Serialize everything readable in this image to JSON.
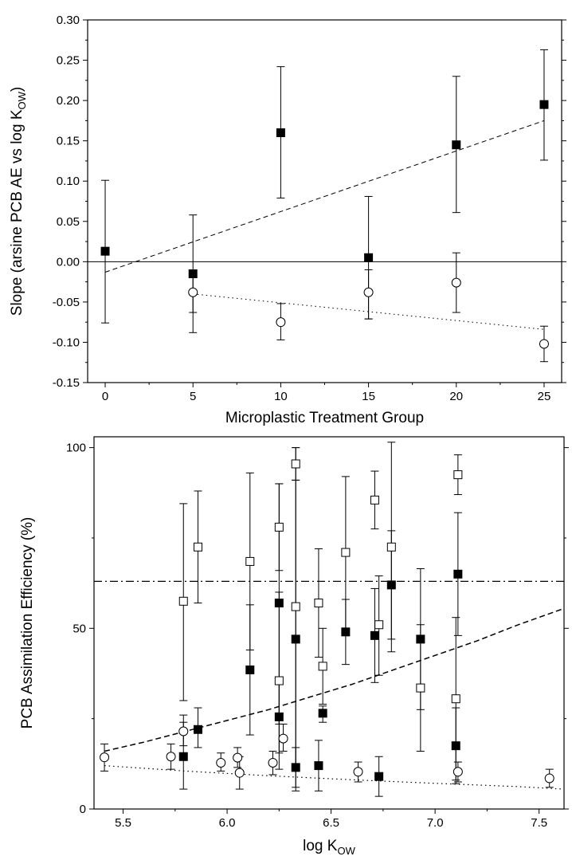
{
  "chart_data": [
    {
      "type": "scatter",
      "xlabel": "Microplastic Treatment Group",
      "ylabel": "Slope (arsine PCB AE vs log K",
      "ylabel_sub": "OW",
      "ylabel_tail": ")",
      "xlim": [
        -1,
        26
      ],
      "ylim": [
        -0.15,
        0.3
      ],
      "x_ticks": [
        0,
        5,
        10,
        15,
        20,
        25
      ],
      "x_tick_labels": [
        "0",
        "5",
        "10",
        "15",
        "20",
        "25"
      ],
      "y_ticks": [
        -0.15,
        -0.1,
        -0.05,
        0.0,
        0.05,
        0.1,
        0.15,
        0.2,
        0.25,
        0.3
      ],
      "y_tick_labels": [
        "-0.15",
        "-0.10",
        "-0.05",
        "0.00",
        "0.05",
        "0.10",
        "0.15",
        "0.20",
        "0.25",
        "0.30"
      ],
      "zero_line": 0,
      "series": [
        {
          "marker": "filled-square",
          "points": [
            {
              "x": 0,
              "y": 0.013,
              "lo": -0.076,
              "hi": 0.101
            },
            {
              "x": 5,
              "y": -0.015,
              "lo": -0.088,
              "hi": 0.058
            },
            {
              "x": 10,
              "y": 0.16,
              "lo": 0.079,
              "hi": 0.242
            },
            {
              "x": 15,
              "y": 0.005,
              "lo": -0.071,
              "hi": 0.081
            },
            {
              "x": 20,
              "y": 0.145,
              "lo": 0.061,
              "hi": 0.23
            },
            {
              "x": 25,
              "y": 0.195,
              "lo": 0.126,
              "hi": 0.263
            }
          ],
          "trend": {
            "style": "dashed",
            "x": [
              0,
              25
            ],
            "y": [
              -0.013,
              0.175
            ]
          }
        },
        {
          "marker": "open-circle",
          "points": [
            {
              "x": 5,
              "y": -0.038,
              "lo": -0.063,
              "hi": -0.013
            },
            {
              "x": 10,
              "y": -0.075,
              "lo": -0.097,
              "hi": -0.052
            },
            {
              "x": 15,
              "y": -0.038,
              "lo": -0.071,
              "hi": -0.01
            },
            {
              "x": 20,
              "y": -0.026,
              "lo": -0.063,
              "hi": 0.011
            },
            {
              "x": 25,
              "y": -0.102,
              "lo": -0.124,
              "hi": -0.08
            }
          ],
          "trend": {
            "style": "dotted",
            "x": [
              5,
              25
            ],
            "y": [
              -0.04,
              -0.084
            ]
          }
        }
      ]
    },
    {
      "type": "scatter",
      "xlabel": "log K",
      "xlabel_sub": "OW",
      "ylabel": "PCB Assimilation Efficiency (%)",
      "xlim": [
        5.36,
        7.62
      ],
      "ylim": [
        0,
        103
      ],
      "x_ticks": [
        5.5,
        6.0,
        6.5,
        7.0,
        7.5
      ],
      "x_tick_labels": [
        "5.5",
        "6.0",
        "6.5",
        "7.0",
        "7.5"
      ],
      "y_ticks": [
        0,
        50,
        100
      ],
      "y_tick_labels": [
        "0",
        "50",
        "100"
      ],
      "series": [
        {
          "marker": "open-square",
          "points": [
            {
              "x": 5.79,
              "y": 57.5,
              "lo": 30,
              "hi": 84.5
            },
            {
              "x": 5.86,
              "y": 72.5,
              "lo": 57,
              "hi": 88
            },
            {
              "x": 6.11,
              "y": 68.5,
              "lo": 44,
              "hi": 93
            },
            {
              "x": 6.25,
              "y": 78,
              "lo": 66,
              "hi": 90
            },
            {
              "x": 6.25,
              "y": 35.5,
              "lo": 11,
              "hi": 60
            },
            {
              "x": 6.33,
              "y": 95.5,
              "lo": 91,
              "hi": 100
            },
            {
              "x": 6.33,
              "y": 56,
              "lo": 12,
              "hi": 100
            },
            {
              "x": 6.44,
              "y": 57,
              "lo": 42,
              "hi": 72
            },
            {
              "x": 6.46,
              "y": 39.5,
              "lo": 29,
              "hi": 50
            },
            {
              "x": 6.57,
              "y": 71,
              "lo": 50,
              "hi": 92
            },
            {
              "x": 6.71,
              "y": 85.5,
              "lo": 77.5,
              "hi": 93.5
            },
            {
              "x": 6.73,
              "y": 51,
              "lo": 37,
              "hi": 64.5
            },
            {
              "x": 6.79,
              "y": 72.5,
              "lo": 43.5,
              "hi": 101.5
            },
            {
              "x": 6.93,
              "y": 33.5,
              "lo": 16,
              "hi": 51
            },
            {
              "x": 7.1,
              "y": 30.5,
              "lo": 8,
              "hi": 53
            },
            {
              "x": 7.11,
              "y": 92.5,
              "lo": 87,
              "hi": 98
            }
          ]
        },
        {
          "marker": "filled-square",
          "points": [
            {
              "x": 5.79,
              "y": 14.5,
              "lo": 5.5,
              "hi": 24
            },
            {
              "x": 5.86,
              "y": 22,
              "lo": 17,
              "hi": 28
            },
            {
              "x": 6.11,
              "y": 38.5,
              "lo": 20.5,
              "hi": 56.5
            },
            {
              "x": 6.25,
              "y": 25.5,
              "lo": 15.5,
              "hi": 36
            },
            {
              "x": 6.25,
              "y": 57,
              "lo": 23.5,
              "hi": 90
            },
            {
              "x": 6.33,
              "y": 47,
              "lo": 5,
              "hi": 91
            },
            {
              "x": 6.33,
              "y": 11.5,
              "lo": 6,
              "hi": 17
            },
            {
              "x": 6.44,
              "y": 12,
              "lo": 5,
              "hi": 19
            },
            {
              "x": 6.46,
              "y": 26.5,
              "lo": 24,
              "hi": 28.5
            },
            {
              "x": 6.57,
              "y": 49,
              "lo": 40,
              "hi": 58
            },
            {
              "x": 6.71,
              "y": 48,
              "lo": 35,
              "hi": 61
            },
            {
              "x": 6.73,
              "y": 9,
              "lo": 3.5,
              "hi": 14.5
            },
            {
              "x": 6.79,
              "y": 62,
              "lo": 47,
              "hi": 77
            },
            {
              "x": 6.93,
              "y": 47,
              "lo": 27.5,
              "hi": 66.5
            },
            {
              "x": 7.1,
              "y": 17.5,
              "lo": 7,
              "hi": 28
            },
            {
              "x": 7.11,
              "y": 65,
              "lo": 48,
              "hi": 82
            }
          ]
        },
        {
          "marker": "open-circle",
          "points": [
            {
              "x": 5.41,
              "y": 14.3,
              "lo": 10.5,
              "hi": 18
            },
            {
              "x": 5.73,
              "y": 14.5,
              "lo": 11,
              "hi": 18
            },
            {
              "x": 5.79,
              "y": 21.5,
              "lo": 17.5,
              "hi": 26
            },
            {
              "x": 5.97,
              "y": 12.8,
              "lo": 10.5,
              "hi": 15.5
            },
            {
              "x": 6.05,
              "y": 14.2,
              "lo": 11.5,
              "hi": 17
            },
            {
              "x": 6.06,
              "y": 10,
              "lo": 5.5,
              "hi": 14.5
            },
            {
              "x": 6.22,
              "y": 12.8,
              "lo": 9.5,
              "hi": 16
            },
            {
              "x": 6.27,
              "y": 19.5,
              "lo": 16,
              "hi": 23.5
            },
            {
              "x": 6.63,
              "y": 10.3,
              "lo": 7.5,
              "hi": 13
            },
            {
              "x": 7.11,
              "y": 10.3,
              "lo": 7.5,
              "hi": 13
            },
            {
              "x": 7.55,
              "y": 8.5,
              "lo": 6,
              "hi": 11
            }
          ]
        }
      ],
      "lines": [
        {
          "style": "dashdot",
          "type": "horizontal",
          "y": 63
        },
        {
          "style": "dashed",
          "type": "curve",
          "x": [
            5.41,
            5.6,
            5.8,
            6.0,
            6.2,
            6.4,
            6.6,
            6.8,
            7.0,
            7.2,
            7.4,
            7.62
          ],
          "y": [
            16,
            18.5,
            21.5,
            24.5,
            27.5,
            31,
            34.5,
            38.5,
            42.5,
            46.5,
            51,
            55.5
          ]
        },
        {
          "style": "dotted",
          "type": "curve",
          "x": [
            5.41,
            5.8,
            6.2,
            6.6,
            7.0,
            7.4,
            7.62
          ],
          "y": [
            12,
            10.5,
            9.2,
            8.1,
            7.1,
            6.2,
            5.5
          ]
        }
      ]
    }
  ]
}
